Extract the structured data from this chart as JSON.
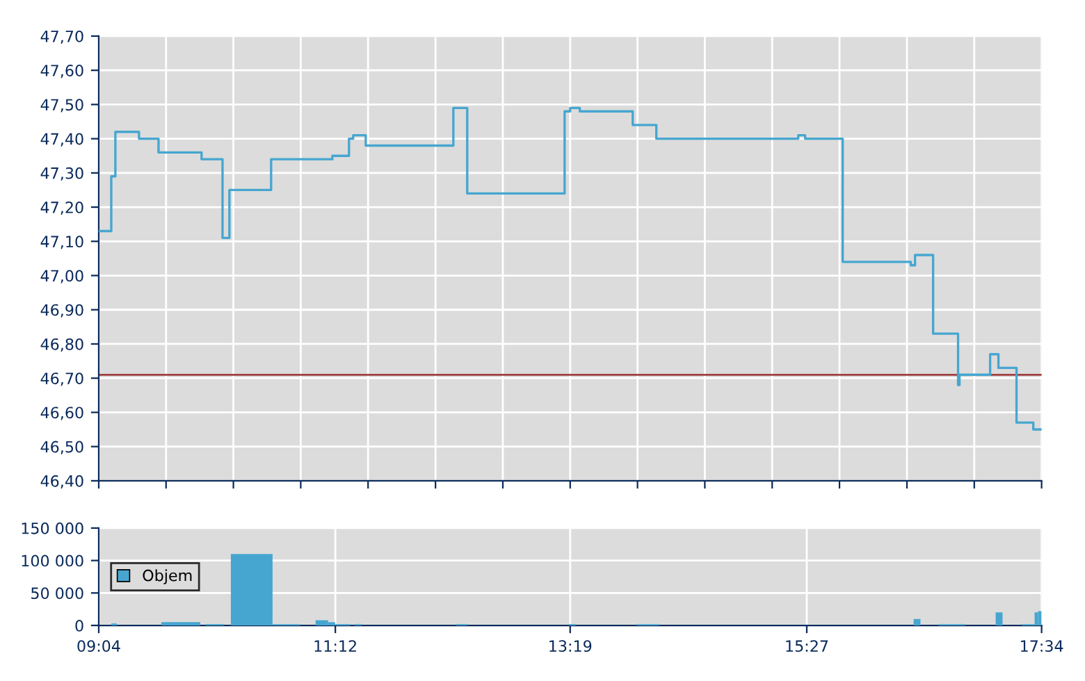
{
  "chart_data": [
    {
      "type": "step",
      "series": [
        {
          "color": "#46a6d0",
          "x": [
            9.067,
            9.18,
            9.217,
            9.43,
            9.606,
            9.994,
            10.183,
            10.245,
            10.621,
            11.173,
            11.323,
            11.361,
            11.474,
            12.264,
            12.389,
            13.267,
            13.317,
            13.404,
            13.881,
            14.094,
            15.373,
            15.435,
            15.774,
            16.388,
            16.426,
            16.589,
            16.814,
            16.827,
            17.103,
            17.178,
            17.341,
            17.492,
            17.567
          ],
          "values": [
            47.13,
            47.29,
            47.42,
            47.4,
            47.36,
            47.34,
            47.11,
            47.25,
            47.34,
            47.35,
            47.4,
            47.41,
            47.38,
            47.49,
            47.24,
            47.48,
            47.49,
            47.48,
            47.44,
            47.4,
            47.41,
            47.4,
            47.04,
            47.03,
            47.06,
            46.83,
            46.68,
            46.71,
            46.77,
            46.73,
            46.57,
            46.55,
            46.55
          ]
        }
      ],
      "xlim": [
        9.067,
        17.567
      ],
      "xticks": [
        {
          "value": 9.067,
          "label": null
        },
        {
          "value": 9.674,
          "label": null
        },
        {
          "value": 10.281,
          "label": null
        },
        {
          "value": 10.888,
          "label": null
        },
        {
          "value": 11.495,
          "label": null
        },
        {
          "value": 12.103,
          "label": null
        },
        {
          "value": 12.71,
          "label": null
        },
        {
          "value": 13.317,
          "label": null
        },
        {
          "value": 13.924,
          "label": null
        },
        {
          "value": 14.531,
          "label": null
        },
        {
          "value": 15.138,
          "label": null
        },
        {
          "value": 15.745,
          "label": null
        },
        {
          "value": 16.353,
          "label": null
        },
        {
          "value": 16.96,
          "label": null
        },
        {
          "value": 17.567,
          "label": null
        }
      ],
      "ylim": [
        46.4,
        47.7
      ],
      "yticks": [
        {
          "value": 46.4,
          "label": "46,40"
        },
        {
          "value": 46.5,
          "label": "46,50"
        },
        {
          "value": 46.6,
          "label": "46,60"
        },
        {
          "value": 46.7,
          "label": "46,70"
        },
        {
          "value": 46.8,
          "label": "46,80"
        },
        {
          "value": 46.9,
          "label": "46,90"
        },
        {
          "value": 47.0,
          "label": "47,00"
        },
        {
          "value": 47.1,
          "label": "47,10"
        },
        {
          "value": 47.2,
          "label": "47,20"
        },
        {
          "value": 47.3,
          "label": "47,30"
        },
        {
          "value": 47.4,
          "label": "47,40"
        },
        {
          "value": 47.5,
          "label": "47,50"
        },
        {
          "value": 47.6,
          "label": "47,60"
        },
        {
          "value": 47.7,
          "label": "47,70"
        }
      ],
      "ref_lines": [
        {
          "axis": "y",
          "value": 46.71,
          "color": "#a04040"
        }
      ],
      "grid": true,
      "tick_labels": "y"
    },
    {
      "type": "histogram",
      "bins": [
        9.18,
        9.23,
        9.631,
        9.982,
        10.032,
        10.195,
        10.258,
        10.634,
        10.885,
        11.022,
        11.135,
        11.198,
        11.336,
        11.374,
        11.436,
        12.289,
        12.389,
        13.304,
        13.367,
        13.918,
        14.119,
        16.413,
        16.475,
        16.638,
        16.877,
        17.153,
        17.215,
        17.391,
        17.504,
        17.535,
        17.566
      ],
      "series": [
        {
          "name": "Objem",
          "color": "#46a6d0",
          "values": [
            3000,
            0,
            5000,
            0,
            2000,
            0,
            110000,
            2000,
            0,
            8000,
            5000,
            2000,
            0,
            2000,
            0,
            2000,
            0,
            2000,
            0,
            2000,
            0,
            10000,
            0,
            2000,
            0,
            20000,
            0,
            2000,
            20000,
            22000
          ]
        }
      ],
      "xlim": [
        9.067,
        17.567
      ],
      "xticks": [
        {
          "value": 9.067,
          "label": "09:04"
        },
        {
          "value": 11.2,
          "label": "11:12"
        },
        {
          "value": 13.317,
          "label": "13:19"
        },
        {
          "value": 15.45,
          "label": "15:27"
        },
        {
          "value": 17.567,
          "label": "17:34"
        }
      ],
      "ylim": [
        0,
        150000
      ],
      "yticks": [
        {
          "value": 0,
          "label": "0"
        },
        {
          "value": 50000,
          "label": "50 000"
        },
        {
          "value": 100000,
          "label": "100 000"
        },
        {
          "value": 150000,
          "label": "150 000"
        }
      ],
      "grid": true,
      "legend": "left"
    }
  ]
}
